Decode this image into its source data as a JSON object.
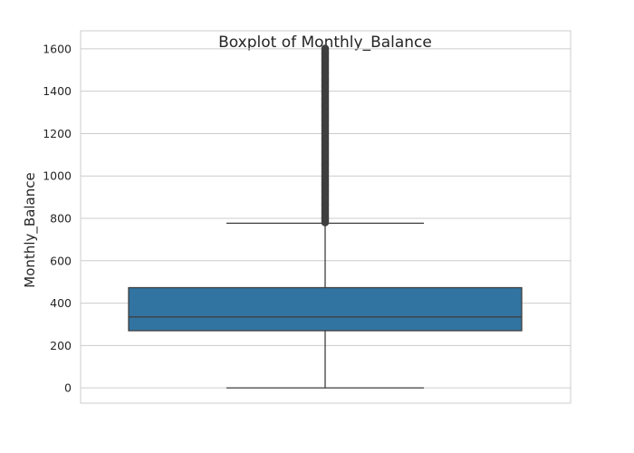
{
  "chart_data": {
    "type": "boxplot",
    "title": "Boxplot of Monthly_Balance",
    "xlabel": "",
    "ylabel": "Monthly_Balance",
    "ylim": [
      -72,
      1685
    ],
    "yticks": [
      0,
      200,
      400,
      600,
      800,
      1000,
      1200,
      1400,
      1600
    ],
    "grid": true,
    "box": {
      "whisker_low": 0,
      "q1": 270,
      "median": 335,
      "q3": 473,
      "whisker_high": 777,
      "max_outlier": 1602
    },
    "colors": {
      "box_fill": "#3274a1",
      "line": "#3f3f3f",
      "grid": "#cccccc",
      "frame": "#cccccc"
    }
  }
}
